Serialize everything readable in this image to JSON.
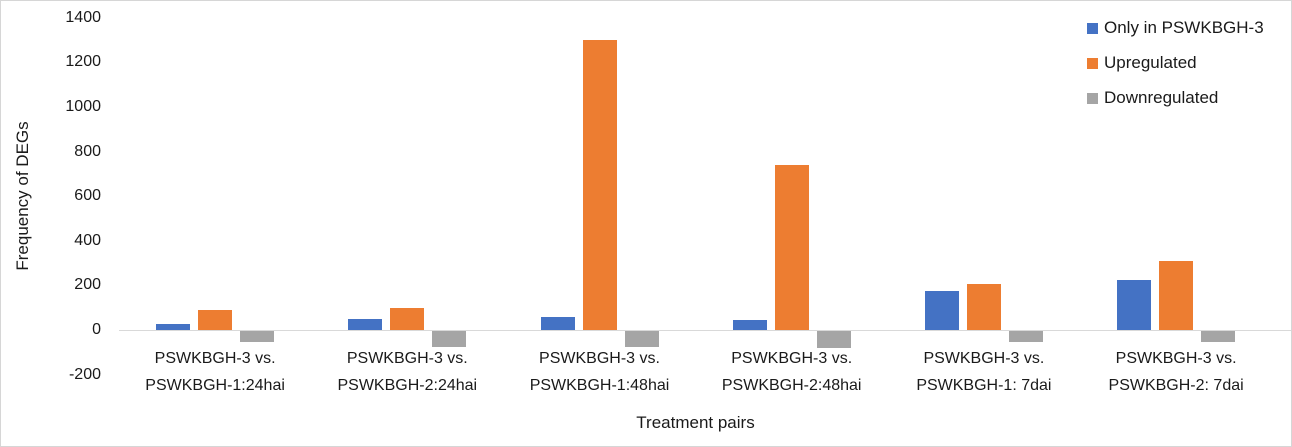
{
  "chart_data": {
    "type": "bar",
    "title": "",
    "xlabel": "Treatment pairs",
    "ylabel": "Frequency of DEGs",
    "ylim": [
      -200,
      1400
    ],
    "yticks": [
      1400,
      1200,
      1000,
      800,
      600,
      400,
      200,
      0,
      -200
    ],
    "grid": false,
    "legend_position": "top-right",
    "categories": [
      [
        "PSWKBGH-3 vs.",
        "PSWKBGH-1:24hai"
      ],
      [
        "PSWKBGH-3 vs.",
        "PSWKBGH-2:24hai"
      ],
      [
        "PSWKBGH-3 vs.",
        "PSWKBGH-1:48hai"
      ],
      [
        "PSWKBGH-3 vs.",
        "PSWKBGH-2:48hai"
      ],
      [
        "PSWKBGH-3 vs.",
        "PSWKBGH-1: 7dai"
      ],
      [
        "PSWKBGH-3 vs.",
        "PSWKBGH-2: 7dai"
      ]
    ],
    "series": [
      {
        "name": "Only in PSWKBGH-3",
        "color": "#4472C4",
        "values": [
          25,
          50,
          60,
          45,
          175,
          225
        ]
      },
      {
        "name": "Upregulated",
        "color": "#ED7D31",
        "values": [
          90,
          100,
          1300,
          740,
          205,
          310
        ]
      },
      {
        "name": "Downregulated",
        "color": "#A5A5A5",
        "values": [
          -50,
          -70,
          -70,
          -75,
          -50,
          -50
        ]
      }
    ]
  },
  "colors": {
    "axis_line": "#d9d9d9",
    "text": "#1a1a1a",
    "background": "#ffffff",
    "frame_border": "#d6d6d6"
  }
}
